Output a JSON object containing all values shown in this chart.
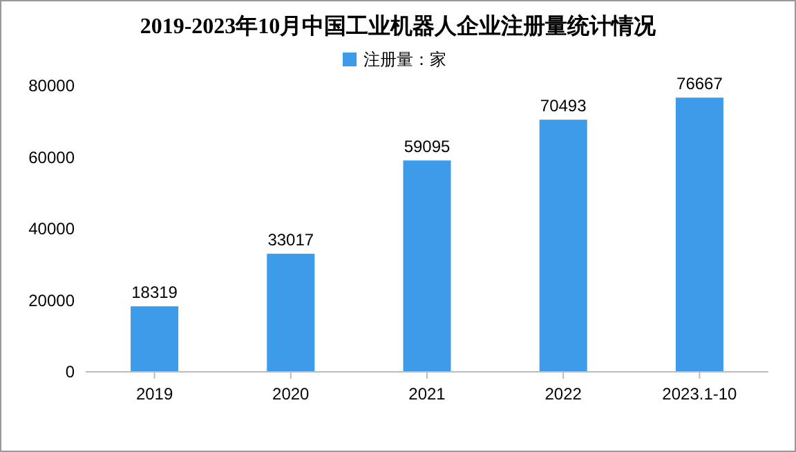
{
  "chart_data": {
    "type": "bar",
    "title": "2019-2023年10月中国工业机器人企业注册量统计情况",
    "categories": [
      "2019",
      "2020",
      "2021",
      "2022",
      "2023.1-10"
    ],
    "series": [
      {
        "name": "注册量：家",
        "color": "#3d9be9",
        "values": [
          18319,
          33017,
          59095,
          70493,
          76667
        ]
      }
    ],
    "ylim": [
      0,
      80000
    ],
    "yticks": [
      0,
      20000,
      40000,
      60000,
      80000
    ],
    "grid": false,
    "legend": "top",
    "data_labels": true
  }
}
